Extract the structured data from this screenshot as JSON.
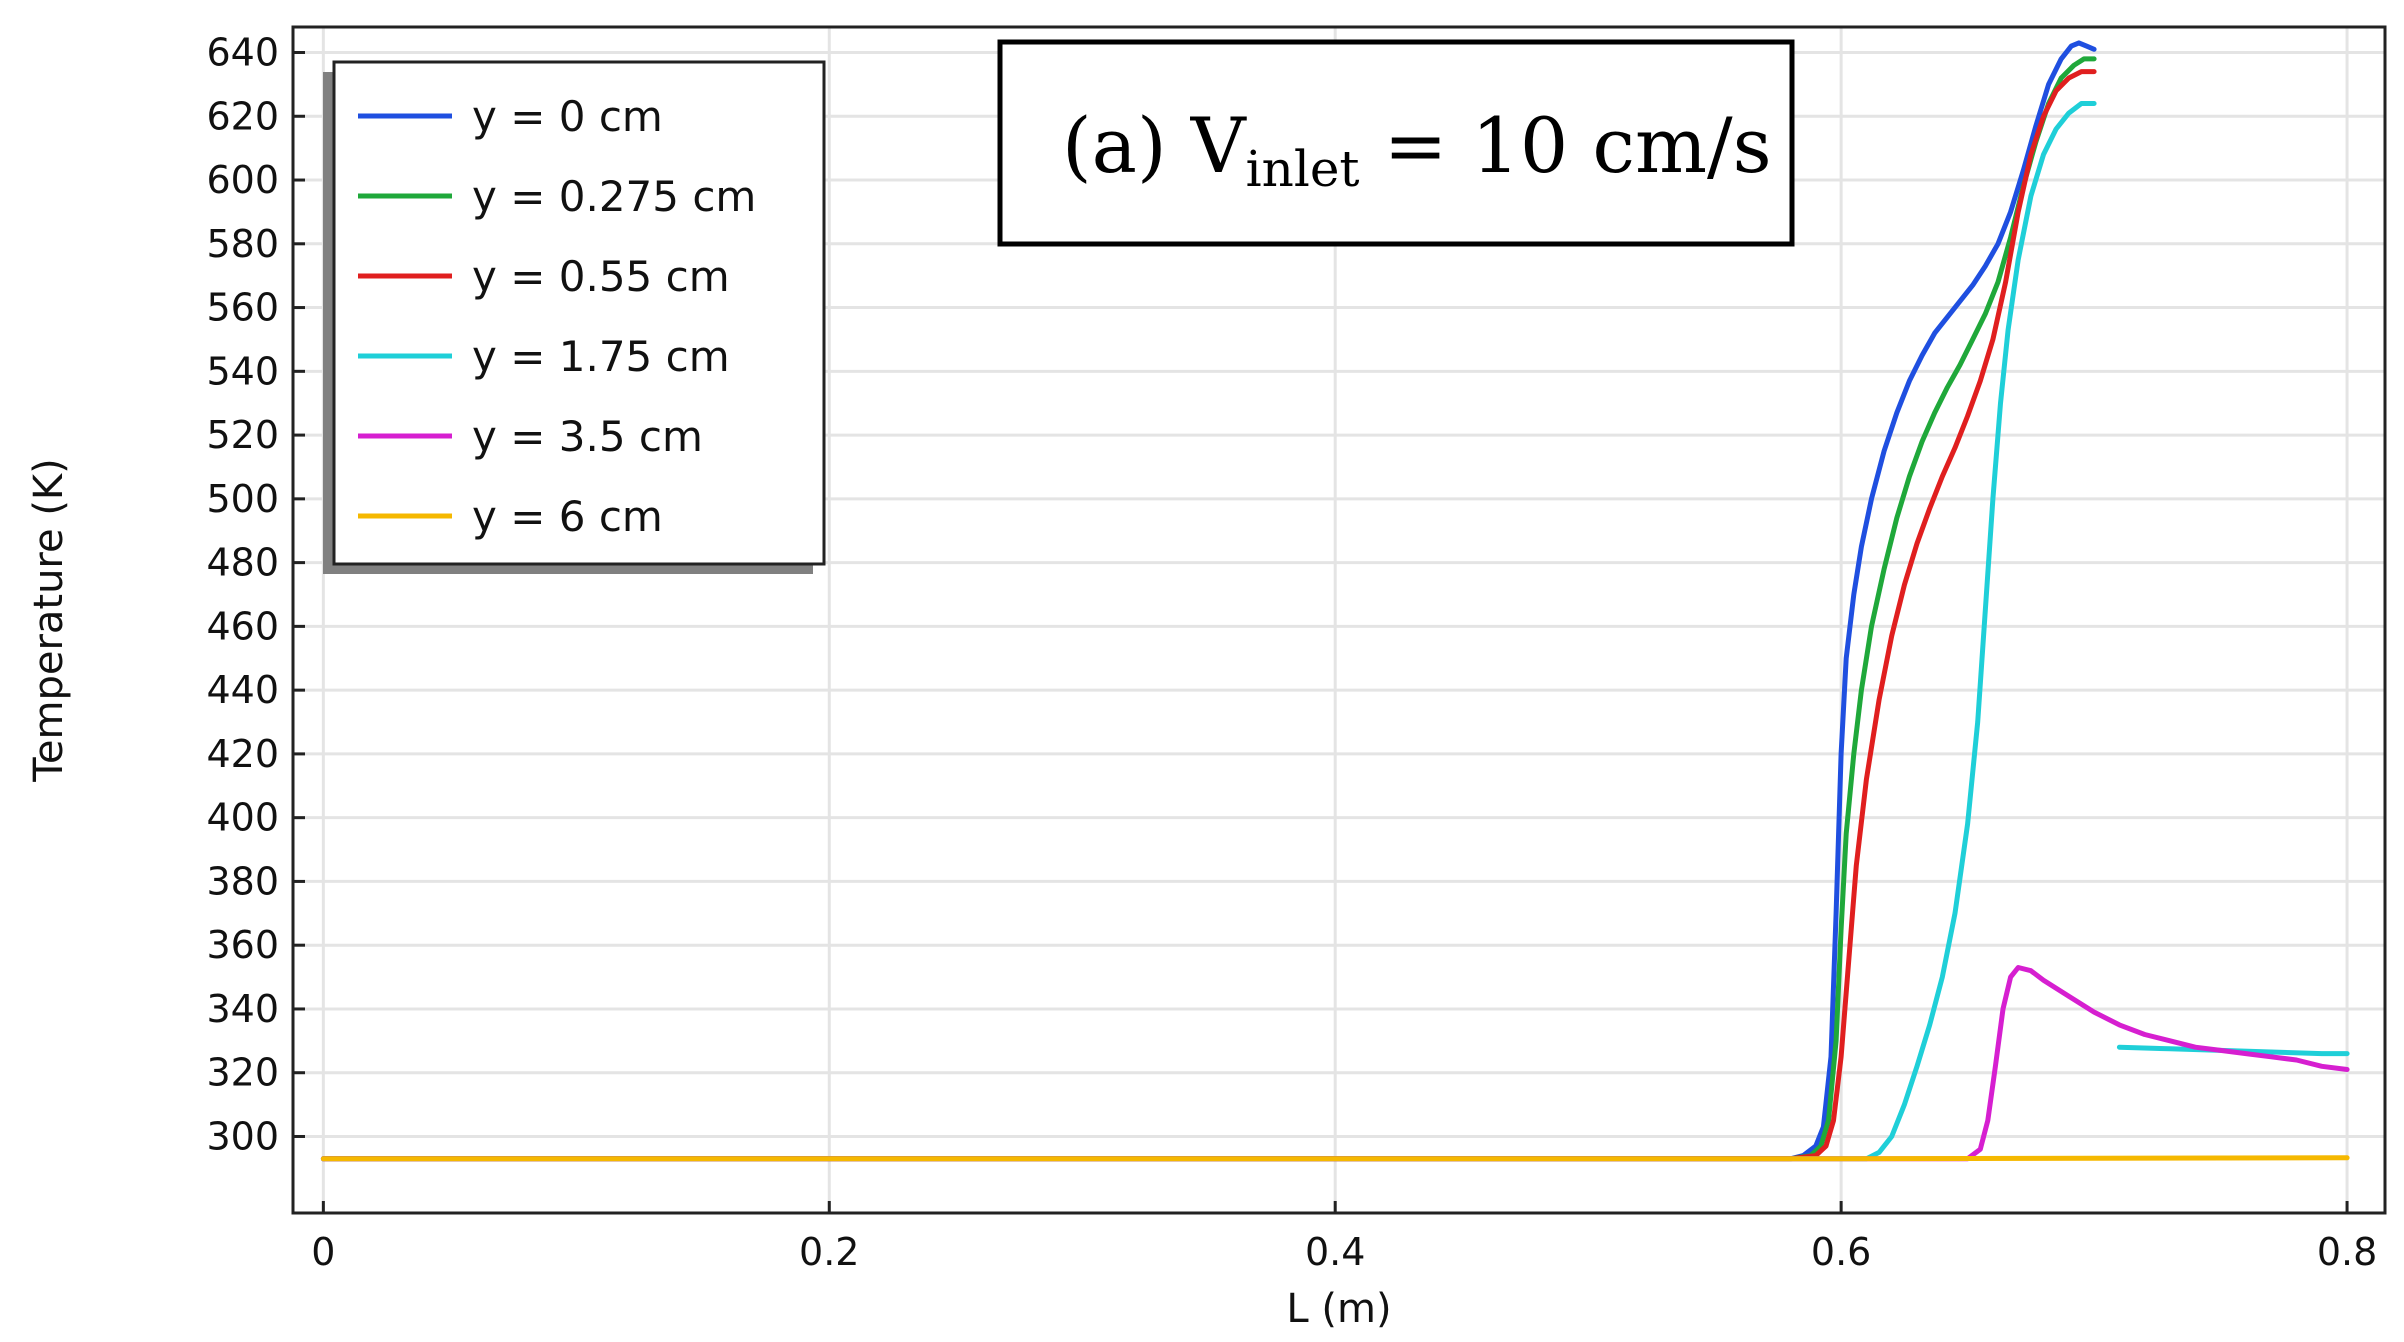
{
  "chart_data": {
    "type": "line",
    "title": "",
    "xlabel": "L (m)",
    "ylabel": "Temperature (K)",
    "xlim": [
      -0.012,
      0.815
    ],
    "ylim": [
      276,
      648
    ],
    "x_ticks": [
      0,
      0.2,
      0.4,
      0.6,
      0.8
    ],
    "x_tick_labels": [
      "0",
      "0.2",
      "0.4",
      "0.6",
      "0.8"
    ],
    "y_ticks": [
      300,
      320,
      340,
      360,
      380,
      400,
      420,
      440,
      460,
      480,
      500,
      520,
      540,
      560,
      580,
      600,
      620,
      640
    ],
    "y_tick_labels": [
      "300",
      "320",
      "340",
      "360",
      "380",
      "400",
      "420",
      "440",
      "460",
      "480",
      "500",
      "520",
      "540",
      "560",
      "580",
      "600",
      "620",
      "640"
    ],
    "grid": true,
    "legend_position": "top-left",
    "annotation": {
      "prefix": "(a) V",
      "subscript": "inlet",
      "suffix": " = 10 cm/s"
    },
    "series": [
      {
        "name": "y = 0 cm",
        "color": "#1f4fe0",
        "segments": [
          {
            "x": [
              0,
              0.1,
              0.2,
              0.3,
              0.4,
              0.5,
              0.58,
              0.585,
              0.59,
              0.593,
              0.596,
              0.598,
              0.6,
              0.602,
              0.605,
              0.608,
              0.612,
              0.617,
              0.622,
              0.627,
              0.632,
              0.637,
              0.642,
              0.647,
              0.652,
              0.657,
              0.662,
              0.667,
              0.672,
              0.677,
              0.682,
              0.687,
              0.691,
              0.694,
              0.697,
              0.7
            ],
            "values": [
              293,
              293,
              293,
              293,
              293,
              293,
              293,
              294,
              297,
              303,
              325,
              370,
              420,
              450,
              470,
              485,
              500,
              515,
              527,
              537,
              545,
              552,
              557,
              562,
              567,
              573,
              580,
              590,
              603,
              617,
              630,
              638,
              642,
              643,
              642,
              641
            ]
          }
        ]
      },
      {
        "name": "y = 0.275 cm",
        "color": "#1fa83a",
        "segments": [
          {
            "x": [
              0,
              0.1,
              0.2,
              0.3,
              0.4,
              0.5,
              0.58,
              0.588,
              0.592,
              0.595,
              0.598,
              0.6,
              0.602,
              0.605,
              0.608,
              0.612,
              0.617,
              0.622,
              0.627,
              0.632,
              0.637,
              0.642,
              0.647,
              0.652,
              0.657,
              0.662,
              0.667,
              0.672,
              0.677,
              0.682,
              0.687,
              0.692,
              0.696,
              0.7
            ],
            "values": [
              293,
              293,
              293,
              293,
              293,
              293,
              293,
              294,
              297,
              305,
              330,
              365,
              395,
              420,
              440,
              460,
              478,
              494,
              507,
              518,
              527,
              535,
              542,
              550,
              558,
              568,
              582,
              598,
              612,
              624,
              632,
              636,
              638,
              638
            ]
          }
        ]
      },
      {
        "name": "y = 0.55 cm",
        "color": "#e01f1f",
        "segments": [
          {
            "x": [
              0,
              0.1,
              0.2,
              0.3,
              0.4,
              0.5,
              0.58,
              0.59,
              0.594,
              0.597,
              0.6,
              0.603,
              0.606,
              0.61,
              0.615,
              0.62,
              0.625,
              0.63,
              0.635,
              0.64,
              0.645,
              0.65,
              0.655,
              0.66,
              0.665,
              0.67,
              0.675,
              0.68,
              0.685,
              0.69,
              0.695,
              0.7
            ],
            "values": [
              293,
              293,
              293,
              293,
              293,
              293,
              293,
              294,
              297,
              305,
              325,
              355,
              385,
              412,
              437,
              457,
              473,
              486,
              497,
              507,
              516,
              526,
              537,
              550,
              568,
              590,
              608,
              620,
              628,
              632,
              634,
              634
            ]
          }
        ]
      },
      {
        "name": "y = 1.75 cm",
        "color": "#1fcfd8",
        "segments": [
          {
            "x": [
              0,
              0.1,
              0.2,
              0.3,
              0.4,
              0.5,
              0.6,
              0.61,
              0.615,
              0.62,
              0.625,
              0.63,
              0.635,
              0.64,
              0.645,
              0.65,
              0.654,
              0.657,
              0.66,
              0.663,
              0.666,
              0.67,
              0.675,
              0.68,
              0.685,
              0.69,
              0.695,
              0.7
            ],
            "values": [
              293,
              293,
              293,
              293,
              293,
              293,
              293,
              293,
              295,
              300,
              310,
              322,
              335,
              350,
              370,
              398,
              430,
              465,
              500,
              530,
              553,
              575,
              595,
              608,
              616,
              621,
              624,
              624
            ]
          },
          {
            "x": [
              0.71,
              0.73,
              0.75,
              0.77,
              0.79,
              0.8
            ],
            "values": [
              328,
              327.5,
              327,
              326.5,
              326,
              326
            ]
          }
        ]
      },
      {
        "name": "y = 3.5 cm",
        "color": "#d61fd0",
        "segments": [
          {
            "x": [
              0,
              0.1,
              0.2,
              0.3,
              0.4,
              0.5,
              0.6,
              0.65,
              0.655,
              0.658,
              0.661,
              0.664,
              0.667,
              0.67,
              0.675,
              0.68,
              0.69,
              0.7,
              0.71,
              0.72,
              0.73,
              0.74,
              0.75,
              0.76,
              0.77,
              0.78,
              0.79,
              0.8
            ],
            "values": [
              293,
              293,
              293,
              293,
              293,
              293,
              293,
              293,
              296,
              305,
              322,
              340,
              350,
              353,
              352,
              349,
              344,
              339,
              335,
              332,
              330,
              328,
              327,
              326,
              325,
              324,
              322,
              321
            ]
          }
        ]
      },
      {
        "name": "y = 6 cm",
        "color": "#f5b800",
        "segments": [
          {
            "x": [
              0,
              0.2,
              0.4,
              0.6,
              0.8
            ],
            "values": [
              293,
              293,
              293,
              293,
              293.3
            ]
          }
        ]
      }
    ]
  }
}
